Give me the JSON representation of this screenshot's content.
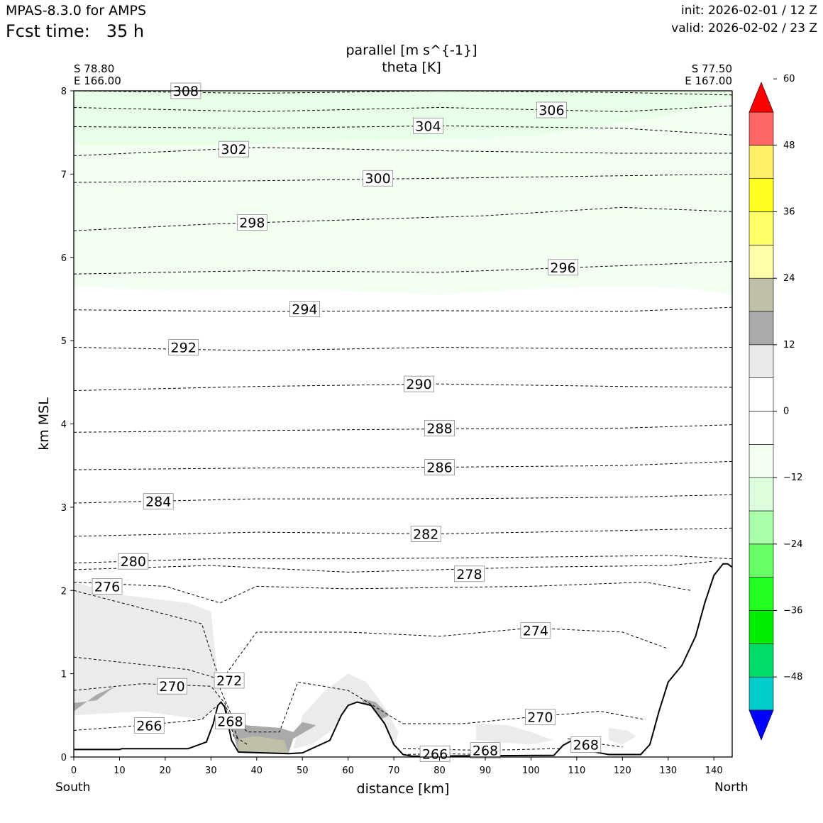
{
  "header": {
    "model": "MPAS-8.3.0 for AMPS",
    "fcst_label": "Fcst time:",
    "fcst_value": "35 h",
    "init": "init: 2026-02-01 / 12 Z",
    "valid": "valid: 2026-02-02 / 23 Z"
  },
  "chart_data": {
    "type": "cross-section",
    "title": "parallel [m s^{-1}]",
    "subtitle": "theta [K]",
    "xlabel": "distance [km]",
    "ylabel": "km MSL",
    "xlim": [
      0,
      144
    ],
    "ylim": [
      0,
      8
    ],
    "x_ticks": [
      0,
      10,
      20,
      30,
      40,
      50,
      60,
      70,
      80,
      90,
      100,
      110,
      120,
      130,
      140
    ],
    "y_ticks": [
      0,
      1,
      2,
      3,
      4,
      5,
      6,
      7,
      8
    ],
    "start_point": {
      "lat": "S 78.80",
      "lon": "E 166.00",
      "label": "South"
    },
    "end_point": {
      "lat": "S 77.50",
      "lon": "E 167.00",
      "label": "North"
    },
    "colorbar": {
      "levels": [
        -60,
        -54,
        -48,
        -42,
        -36,
        -30,
        -24,
        -18,
        -12,
        -6,
        0,
        6,
        12,
        18,
        24,
        30,
        36,
        42,
        48,
        54,
        60
      ],
      "tick_labels": [
        "60",
        "48",
        "36",
        "24",
        "12",
        "0",
        "−12",
        "−24",
        "−36",
        "−48"
      ],
      "tick_values": [
        60,
        48,
        36,
        24,
        12,
        0,
        -12,
        -24,
        -36,
        -48
      ],
      "colors": [
        "#0000ff",
        "#00cccc",
        "#00dd66",
        "#00ee00",
        "#22ff22",
        "#66ff66",
        "#aaffaa",
        "#ddffdd",
        "#f4fff4",
        "#ffffff",
        "#ffffff",
        "#eaeaea",
        "#aaaaaa",
        "#c0c0a8",
        "#ffffaa",
        "#ffff66",
        "#ffff22",
        "#ffee66",
        "#ff6666",
        "#ff0000"
      ]
    },
    "terrain_km": [
      [
        0,
        0.09
      ],
      [
        10,
        0.09
      ],
      [
        10.5,
        0.1
      ],
      [
        25,
        0.1
      ],
      [
        29,
        0.18
      ],
      [
        30.5,
        0.4
      ],
      [
        31.5,
        0.62
      ],
      [
        32.2,
        0.66
      ],
      [
        33,
        0.6
      ],
      [
        34.5,
        0.2
      ],
      [
        36,
        0.06
      ],
      [
        47,
        0.04
      ],
      [
        50,
        0.05
      ],
      [
        56,
        0.2
      ],
      [
        58.5,
        0.5
      ],
      [
        60,
        0.62
      ],
      [
        62,
        0.66
      ],
      [
        65,
        0.62
      ],
      [
        68,
        0.4
      ],
      [
        70,
        0.15
      ],
      [
        72,
        0.03
      ],
      [
        74,
        0.01
      ],
      [
        105,
        0.02
      ],
      [
        107,
        0.14
      ],
      [
        109,
        0.2
      ],
      [
        111,
        0.18
      ],
      [
        114,
        0.06
      ],
      [
        117,
        0.03
      ],
      [
        124,
        0.03
      ],
      [
        126,
        0.15
      ],
      [
        128,
        0.55
      ],
      [
        130,
        0.9
      ],
      [
        133,
        1.1
      ],
      [
        136,
        1.45
      ],
      [
        138,
        1.85
      ],
      [
        140,
        2.18
      ],
      [
        142,
        2.32
      ],
      [
        143,
        2.32
      ],
      [
        144,
        2.28
      ]
    ],
    "theta_contours": [
      {
        "value": 308,
        "label": "308",
        "label_x": 24.5,
        "label_y": 8.0,
        "pts": [
          [
            0,
            8.0
          ],
          [
            40,
            7.97
          ],
          [
            80,
            8.0
          ],
          [
            120,
            7.98
          ],
          [
            144,
            7.95
          ]
        ]
      },
      {
        "value": 306,
        "label": "306",
        "label_x": 104.5,
        "label_y": 7.77,
        "pts": [
          [
            0,
            7.8
          ],
          [
            40,
            7.75
          ],
          [
            80,
            7.8
          ],
          [
            120,
            7.75
          ],
          [
            144,
            7.82
          ]
        ]
      },
      {
        "value": 304,
        "label": "304",
        "label_x": 77.5,
        "label_y": 7.58,
        "pts": [
          [
            0,
            7.57
          ],
          [
            40,
            7.55
          ],
          [
            80,
            7.58
          ],
          [
            120,
            7.55
          ],
          [
            144,
            7.47
          ]
        ]
      },
      {
        "value": 302,
        "label": "302",
        "label_x": 35,
        "label_y": 7.3,
        "pts": [
          [
            0,
            7.22
          ],
          [
            40,
            7.32
          ],
          [
            80,
            7.28
          ],
          [
            120,
            7.25
          ],
          [
            144,
            7.25
          ]
        ]
      },
      {
        "value": 300,
        "label": "300",
        "label_x": 66.5,
        "label_y": 6.95,
        "pts": [
          [
            0,
            6.9
          ],
          [
            40,
            6.92
          ],
          [
            80,
            6.95
          ],
          [
            120,
            6.98
          ],
          [
            144,
            7.0
          ]
        ]
      },
      {
        "value": 298,
        "label": "298",
        "label_x": 39,
        "label_y": 6.42,
        "pts": [
          [
            0,
            6.32
          ],
          [
            30,
            6.4
          ],
          [
            60,
            6.45
          ],
          [
            90,
            6.5
          ],
          [
            120,
            6.6
          ],
          [
            144,
            6.55
          ]
        ]
      },
      {
        "value": 296,
        "label": "296",
        "label_x": 107,
        "label_y": 5.88,
        "pts": [
          [
            0,
            5.8
          ],
          [
            40,
            5.84
          ],
          [
            80,
            5.82
          ],
          [
            120,
            5.9
          ],
          [
            144,
            5.95
          ]
        ]
      },
      {
        "value": 294,
        "label": "294",
        "label_x": 50.5,
        "label_y": 5.38,
        "pts": [
          [
            0,
            5.37
          ],
          [
            40,
            5.35
          ],
          [
            80,
            5.36
          ],
          [
            120,
            5.35
          ],
          [
            144,
            5.4
          ]
        ]
      },
      {
        "value": 292,
        "label": "292",
        "label_x": 24,
        "label_y": 4.92,
        "pts": [
          [
            0,
            4.92
          ],
          [
            40,
            4.88
          ],
          [
            80,
            4.92
          ],
          [
            120,
            4.9
          ],
          [
            144,
            4.92
          ]
        ]
      },
      {
        "value": 290,
        "label": "290",
        "label_x": 75.5,
        "label_y": 4.48,
        "pts": [
          [
            0,
            4.4
          ],
          [
            40,
            4.45
          ],
          [
            80,
            4.48
          ],
          [
            120,
            4.45
          ],
          [
            144,
            4.44
          ]
        ]
      },
      {
        "value": 288,
        "label": "288",
        "label_x": 80,
        "label_y": 3.95,
        "pts": [
          [
            0,
            3.9
          ],
          [
            40,
            3.92
          ],
          [
            80,
            3.94
          ],
          [
            120,
            3.95
          ],
          [
            144,
            3.99
          ]
        ]
      },
      {
        "value": 286,
        "label": "286",
        "label_x": 80,
        "label_y": 3.48,
        "pts": [
          [
            0,
            3.45
          ],
          [
            40,
            3.47
          ],
          [
            80,
            3.48
          ],
          [
            120,
            3.5
          ],
          [
            144,
            3.55
          ]
        ]
      },
      {
        "value": 284,
        "label": "284",
        "label_x": 18.5,
        "label_y": 3.07,
        "pts": [
          [
            0,
            3.05
          ],
          [
            40,
            3.1
          ],
          [
            80,
            3.1
          ],
          [
            120,
            3.12
          ],
          [
            144,
            3.15
          ]
        ]
      },
      {
        "value": 282,
        "label": "282",
        "label_x": 77,
        "label_y": 2.68,
        "pts": [
          [
            0,
            2.65
          ],
          [
            40,
            2.7
          ],
          [
            80,
            2.68
          ],
          [
            120,
            2.72
          ],
          [
            144,
            2.75
          ]
        ]
      },
      {
        "value": 280,
        "label": "280",
        "label_x": 13,
        "label_y": 2.35,
        "pts": [
          [
            0,
            2.33
          ],
          [
            30,
            2.38
          ],
          [
            60,
            2.38
          ],
          [
            100,
            2.4
          ],
          [
            130,
            2.42
          ],
          [
            144,
            2.38
          ]
        ]
      },
      {
        "value": 278,
        "label": "278",
        "label_x": 86.5,
        "label_y": 2.2,
        "pts": [
          [
            0,
            2.25
          ],
          [
            30,
            2.3
          ],
          [
            60,
            2.22
          ],
          [
            100,
            2.28
          ],
          [
            130,
            2.3
          ],
          [
            140,
            2.35
          ]
        ]
      },
      {
        "value": 276,
        "label": "276",
        "label_x": 7.3,
        "label_y": 2.05,
        "pts": [
          [
            0,
            2.1
          ],
          [
            20,
            2.05
          ],
          [
            32,
            1.85
          ],
          [
            40,
            2.05
          ],
          [
            60,
            2.02
          ],
          [
            100,
            2.05
          ],
          [
            125,
            2.1
          ],
          [
            135,
            2.0
          ]
        ]
      },
      {
        "value": 274,
        "label": "274",
        "label_x": 101,
        "label_y": 1.52,
        "pts": [
          [
            0,
            2.0
          ],
          [
            28,
            1.6
          ],
          [
            32,
            0.9
          ],
          [
            40,
            1.5
          ],
          [
            60,
            1.5
          ],
          [
            80,
            1.45
          ],
          [
            100,
            1.55
          ],
          [
            120,
            1.5
          ],
          [
            130,
            1.3
          ]
        ]
      },
      {
        "value": 272,
        "label": "272",
        "label_x": 34,
        "label_y": 0.92,
        "pts": [
          [
            0,
            1.2
          ],
          [
            25,
            1.05
          ],
          [
            31,
            0.95
          ],
          [
            34.5,
            0.5
          ],
          [
            38,
            0.3
          ],
          [
            45,
            0.3
          ],
          [
            49,
            0.9
          ],
          [
            60,
            0.8
          ],
          [
            72,
            0.4
          ]
        ]
      },
      {
        "value": 270,
        "label": "270",
        "label_x": 21.5,
        "label_y": 0.85,
        "pts": [
          [
            0,
            0.8
          ],
          [
            15,
            0.88
          ],
          [
            30,
            0.85
          ],
          [
            33,
            0.65
          ],
          [
            36,
            0.2
          ]
        ]
      },
      {
        "value": 270,
        "label": "270",
        "label_x": 102,
        "label_y": 0.48,
        "pts": [
          [
            72,
            0.4
          ],
          [
            85,
            0.4
          ],
          [
            100,
            0.48
          ],
          [
            115,
            0.55
          ],
          [
            125,
            0.45
          ]
        ]
      },
      {
        "value": 268,
        "label": "268",
        "label_x": 34.2,
        "label_y": 0.43,
        "pts": [
          [
            33,
            0.62
          ],
          [
            35,
            0.25
          ],
          [
            38,
            0.15
          ]
        ]
      },
      {
        "value": 268,
        "label": "268",
        "label_x": 90,
        "label_y": 0.08,
        "pts": [
          [
            72,
            0.1
          ],
          [
            90,
            0.08
          ],
          [
            105,
            0.1
          ],
          [
            115,
            0.12
          ]
        ]
      },
      {
        "value": 268,
        "label": "268",
        "label_x": 112,
        "label_y": 0.15,
        "pts": [
          [
            108,
            0.22
          ],
          [
            112,
            0.18
          ],
          [
            120,
            0.12
          ]
        ]
      },
      {
        "value": 266,
        "label": "266",
        "label_x": 16.5,
        "label_y": 0.38,
        "pts": [
          [
            0,
            0.32
          ],
          [
            15,
            0.38
          ],
          [
            28,
            0.45
          ],
          [
            31,
            0.6
          ]
        ]
      },
      {
        "value": 266,
        "label": "266",
        "label_x": 79,
        "label_y": 0.04,
        "pts": [
          [
            72,
            0.03
          ],
          [
            80,
            0.04
          ],
          [
            90,
            0.03
          ]
        ]
      }
    ]
  }
}
